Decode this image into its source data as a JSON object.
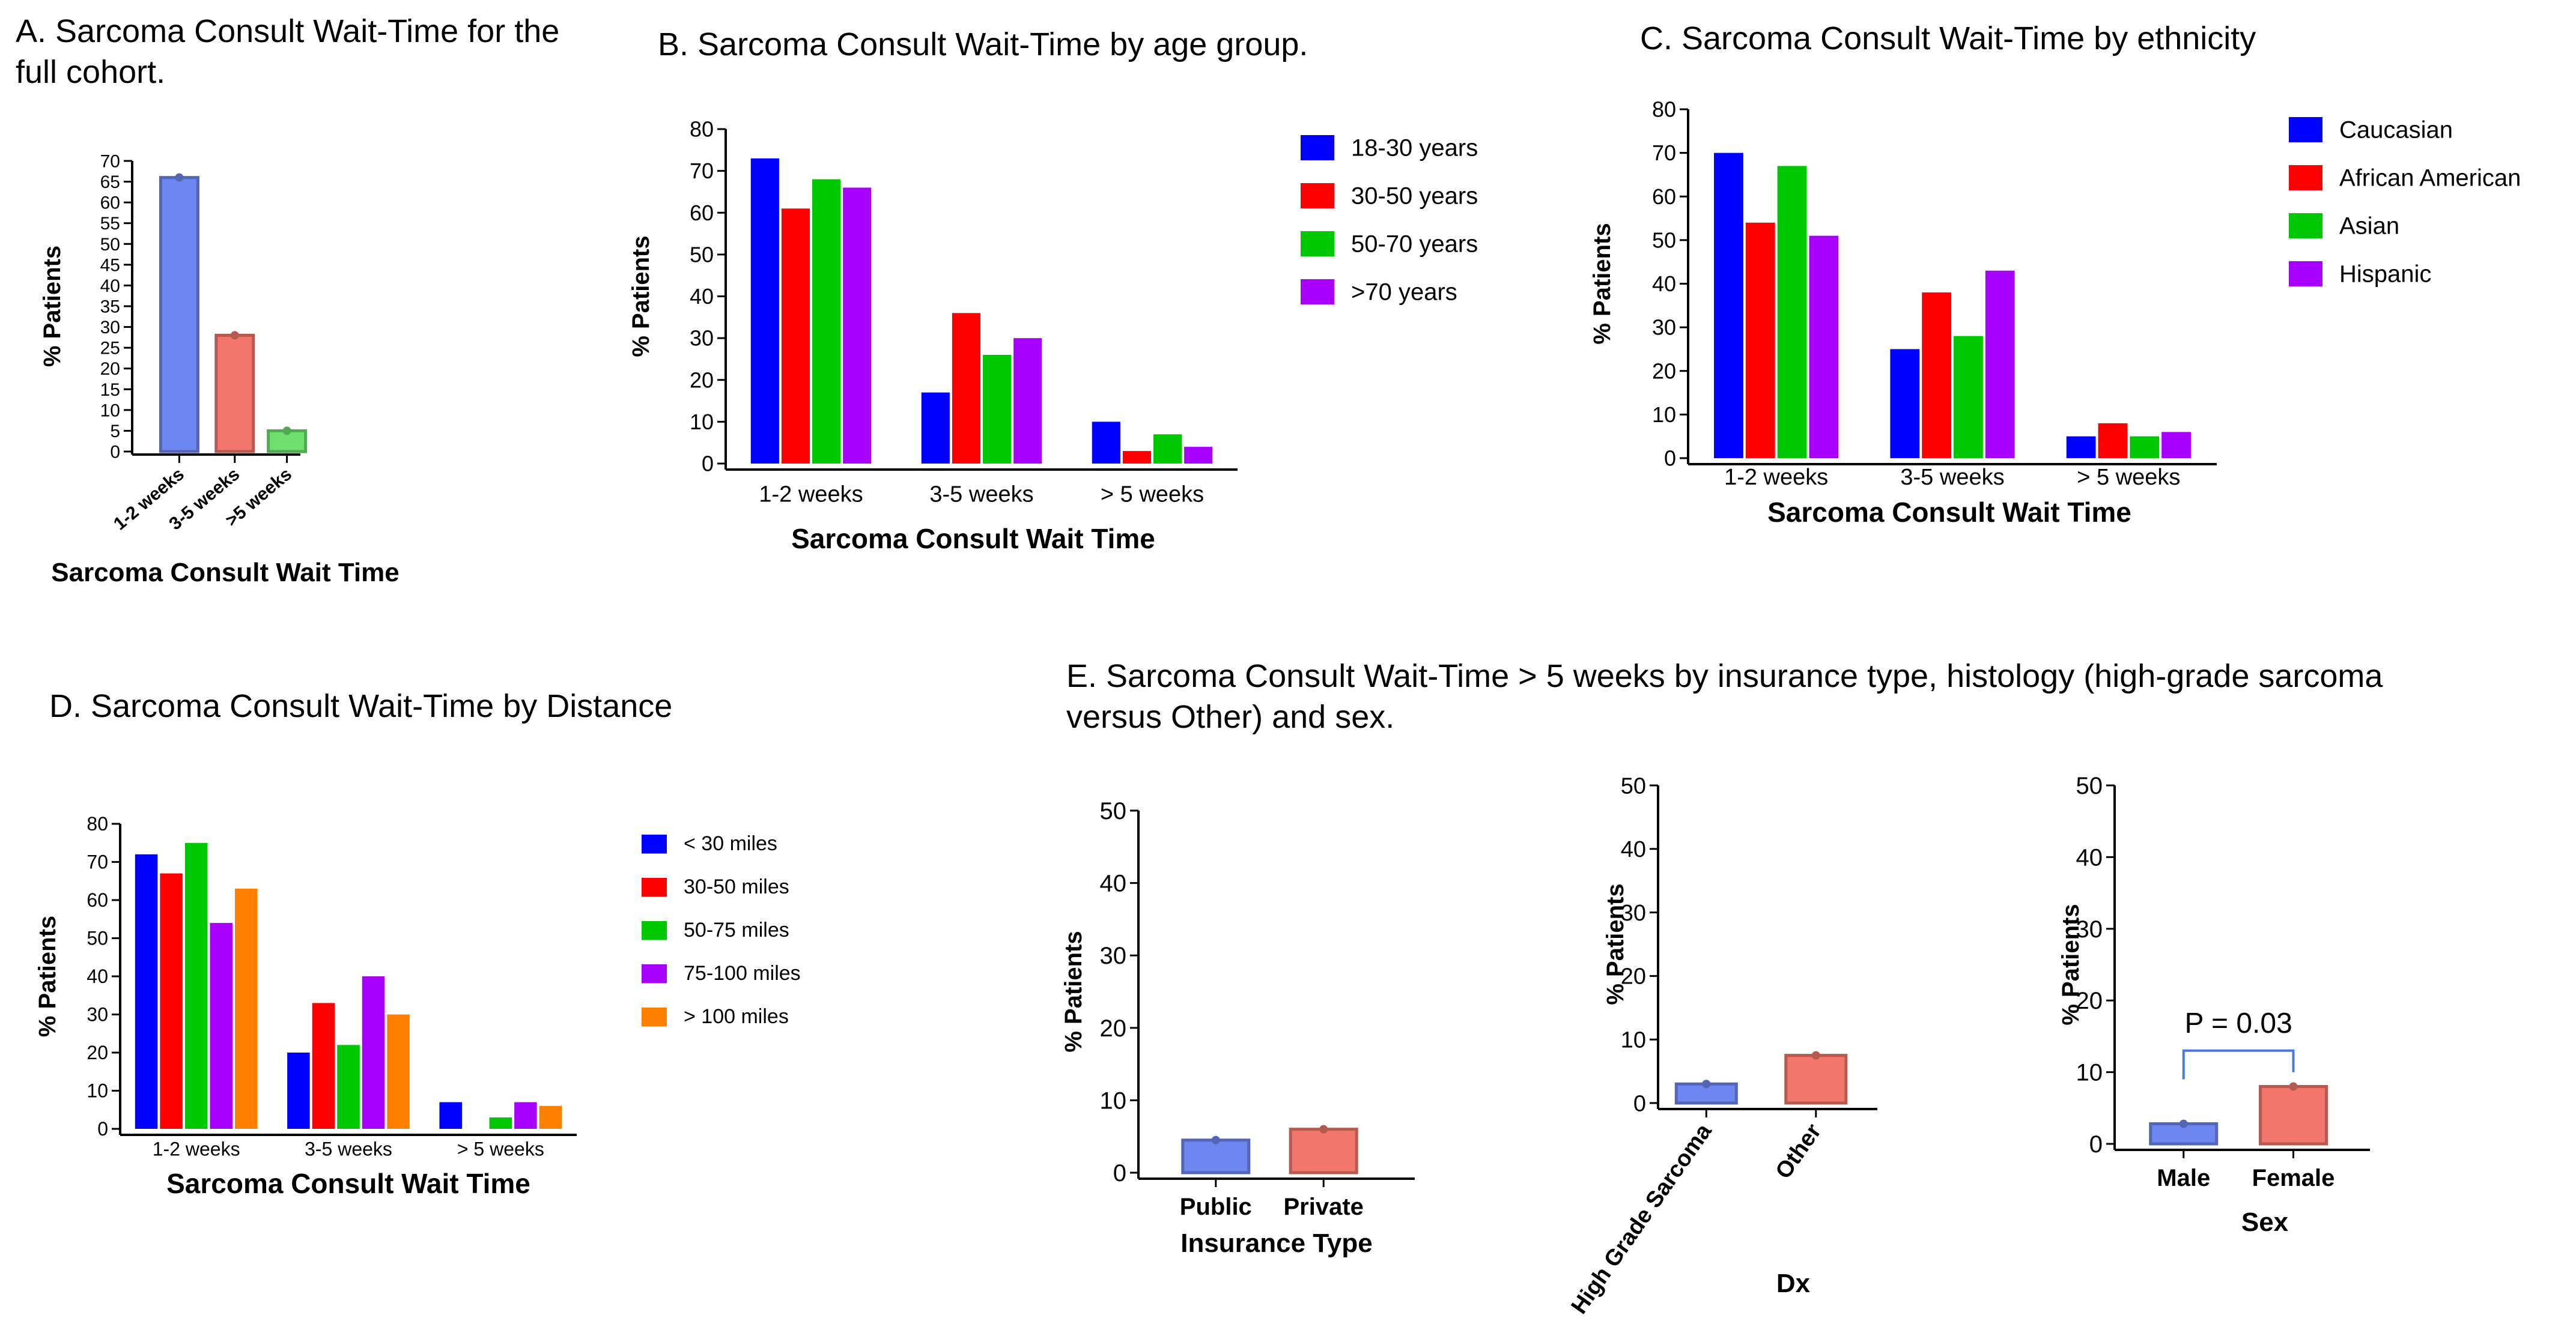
{
  "panels": {
    "A": {
      "title": "A. Sarcoma Consult Wait-Time for the full cohort."
    },
    "B": {
      "title": "B. Sarcoma Consult Wait-Time by age group."
    },
    "C": {
      "title": "C. Sarcoma Consult Wait-Time by ethnicity"
    },
    "D": {
      "title": "D. Sarcoma Consult Wait-Time by Distance"
    },
    "E": {
      "title": "E. Sarcoma Consult Wait-Time > 5 weeks by insurance type, histology (high-grade sarcoma versus Other) and sex."
    }
  },
  "chart_data": [
    {
      "id": "A",
      "type": "bar",
      "title": "A. Sarcoma Consult Wait-Time for the full cohort.",
      "categories": [
        "1-2 weeks",
        "3-5 weeks",
        ">5 weeks"
      ],
      "values": [
        66,
        28,
        5
      ],
      "colors": [
        "#6e86f0",
        "#f2766c",
        "#6fe06f"
      ],
      "xlabel": "Sarcoma Consult Wait Time",
      "ylabel": "% Patients",
      "ylim": [
        0,
        70
      ],
      "yticks": [
        0,
        5,
        10,
        15,
        20,
        25,
        30,
        35,
        40,
        45,
        50,
        55,
        60,
        65,
        70
      ]
    },
    {
      "id": "B",
      "type": "bar",
      "title": "B. Sarcoma Consult Wait-Time by age group.",
      "categories": [
        "1-2 weeks",
        "3-5 weeks",
        "> 5 weeks"
      ],
      "series": [
        {
          "name": "18-30 years",
          "color": "#0000ff",
          "values": [
            73,
            17,
            10
          ]
        },
        {
          "name": "30-50 years",
          "color": "#ff0000",
          "values": [
            61,
            36,
            3
          ]
        },
        {
          "name": "50-70 years",
          "color": "#00c800",
          "values": [
            68,
            26,
            7
          ]
        },
        {
          "name": ">70 years",
          "color": "#a800ff",
          "values": [
            66,
            30,
            4
          ]
        }
      ],
      "xlabel": "Sarcoma Consult Wait Time",
      "ylabel": "% Patients",
      "ylim": [
        0,
        80
      ],
      "yticks": [
        0,
        10,
        20,
        30,
        40,
        50,
        60,
        70,
        80
      ]
    },
    {
      "id": "C",
      "type": "bar",
      "title": "C. Sarcoma Consult Wait-Time by ethnicity",
      "categories": [
        "1-2 weeks",
        "3-5 weeks",
        "> 5 weeks"
      ],
      "series": [
        {
          "name": "Caucasian",
          "color": "#0000ff",
          "values": [
            70,
            25,
            5
          ]
        },
        {
          "name": "African American",
          "color": "#ff0000",
          "values": [
            54,
            38,
            8
          ]
        },
        {
          "name": "Asian",
          "color": "#00c800",
          "values": [
            67,
            28,
            5
          ]
        },
        {
          "name": "Hispanic",
          "color": "#a800ff",
          "values": [
            51,
            43,
            6
          ]
        }
      ],
      "xlabel": "Sarcoma Consult Wait Time",
      "ylabel": "% Patients",
      "ylim": [
        0,
        80
      ],
      "yticks": [
        0,
        10,
        20,
        30,
        40,
        50,
        60,
        70,
        80
      ]
    },
    {
      "id": "D",
      "type": "bar",
      "title": "D. Sarcoma Consult Wait-Time by Distance",
      "categories": [
        "1-2 weeks",
        "3-5 weeks",
        "> 5 weeks"
      ],
      "series": [
        {
          "name": "< 30 miles",
          "color": "#0000ff",
          "values": [
            72,
            20,
            7
          ]
        },
        {
          "name": "30-50 miles",
          "color": "#ff0000",
          "values": [
            67,
            33,
            0
          ]
        },
        {
          "name": "50-75 miles",
          "color": "#00c800",
          "values": [
            75,
            22,
            3
          ]
        },
        {
          "name": "75-100 miles",
          "color": "#a800ff",
          "values": [
            54,
            40,
            7
          ]
        },
        {
          "name": "> 100 miles",
          "color": "#ff8000",
          "values": [
            63,
            30,
            6
          ]
        }
      ],
      "xlabel": "Sarcoma Consult Wait Time",
      "ylabel": "% Patients",
      "ylim": [
        0,
        80
      ],
      "yticks": [
        0,
        10,
        20,
        30,
        40,
        50,
        60,
        70,
        80
      ]
    },
    {
      "id": "E1",
      "type": "bar",
      "categories": [
        "Public",
        "Private"
      ],
      "values": [
        4.5,
        6
      ],
      "colors": [
        "#6e86f0",
        "#f2766c"
      ],
      "xlabel": "Insurance Type",
      "ylabel": "% Patients",
      "ylim": [
        0,
        50
      ],
      "yticks": [
        0,
        10,
        20,
        30,
        40,
        50
      ]
    },
    {
      "id": "E2",
      "type": "bar",
      "categories": [
        "High Grade Sarcoma",
        "Other"
      ],
      "values": [
        3,
        7.5
      ],
      "colors": [
        "#6e86f0",
        "#f2766c"
      ],
      "xlabel": "Dx",
      "ylabel": "% Patients",
      "ylim": [
        0,
        50
      ],
      "yticks": [
        0,
        10,
        20,
        30,
        40,
        50
      ]
    },
    {
      "id": "E3",
      "type": "bar",
      "categories": [
        "Male",
        "Female"
      ],
      "values": [
        2.8,
        8
      ],
      "colors": [
        "#6e86f0",
        "#f2766c"
      ],
      "xlabel": "Sex",
      "ylabel": "% Patients",
      "ylim": [
        0,
        50
      ],
      "yticks": [
        0,
        10,
        20,
        30,
        40,
        50
      ],
      "annotation": "P = 0.03"
    }
  ]
}
